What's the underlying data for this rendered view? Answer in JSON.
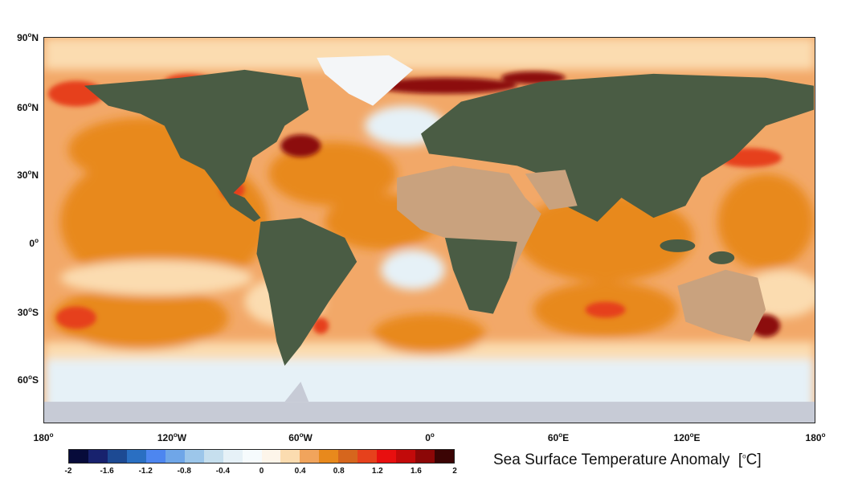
{
  "title": "Sea Surface Temperature Anomaly",
  "unit": "C",
  "lat_labels": [
    {
      "num": "90",
      "hem": "N"
    },
    {
      "num": "60",
      "hem": "N"
    },
    {
      "num": "30",
      "hem": "N"
    },
    {
      "num": "0",
      "hem": ""
    },
    {
      "num": "30",
      "hem": "S"
    },
    {
      "num": "60",
      "hem": "S"
    }
  ],
  "lon_labels": [
    {
      "num": "180",
      "hem": ""
    },
    {
      "num": "120",
      "hem": "W"
    },
    {
      "num": "60",
      "hem": "W"
    },
    {
      "num": "0",
      "hem": ""
    },
    {
      "num": "60",
      "hem": "E"
    },
    {
      "num": "120",
      "hem": "E"
    },
    {
      "num": "180",
      "hem": ""
    }
  ],
  "colorbar": {
    "ticks": [
      "-2",
      "-1.6",
      "-1.2",
      "-0.8",
      "-0.4",
      "0",
      "0.4",
      "0.8",
      "1.2",
      "1.6",
      "2"
    ],
    "colors": [
      "#070b3a",
      "#18226e",
      "#1d4a93",
      "#2a6fc2",
      "#4d86f0",
      "#6fa6e8",
      "#9cc6ea",
      "#c6dfee",
      "#e6f1f7",
      "#f6fbfd",
      "#fdf5ea",
      "#fbdcb0",
      "#f1a45c",
      "#e8891c",
      "#d6661d",
      "#e6411c",
      "#e80f0f",
      "#c20a0a",
      "#8c0707",
      "#3b0404"
    ]
  },
  "map_colors": {
    "ocean_base": "#f2a868",
    "warm": "#e8891c",
    "hot": "#e6411c",
    "very_hot": "#8c0707",
    "cool": "#e6f1f7",
    "neutral": "#fbdcb0",
    "land": "#4a5c44",
    "desert": "#c9a27e",
    "ice": "#f4f6f8",
    "antarctica": "#c7cbd6"
  }
}
